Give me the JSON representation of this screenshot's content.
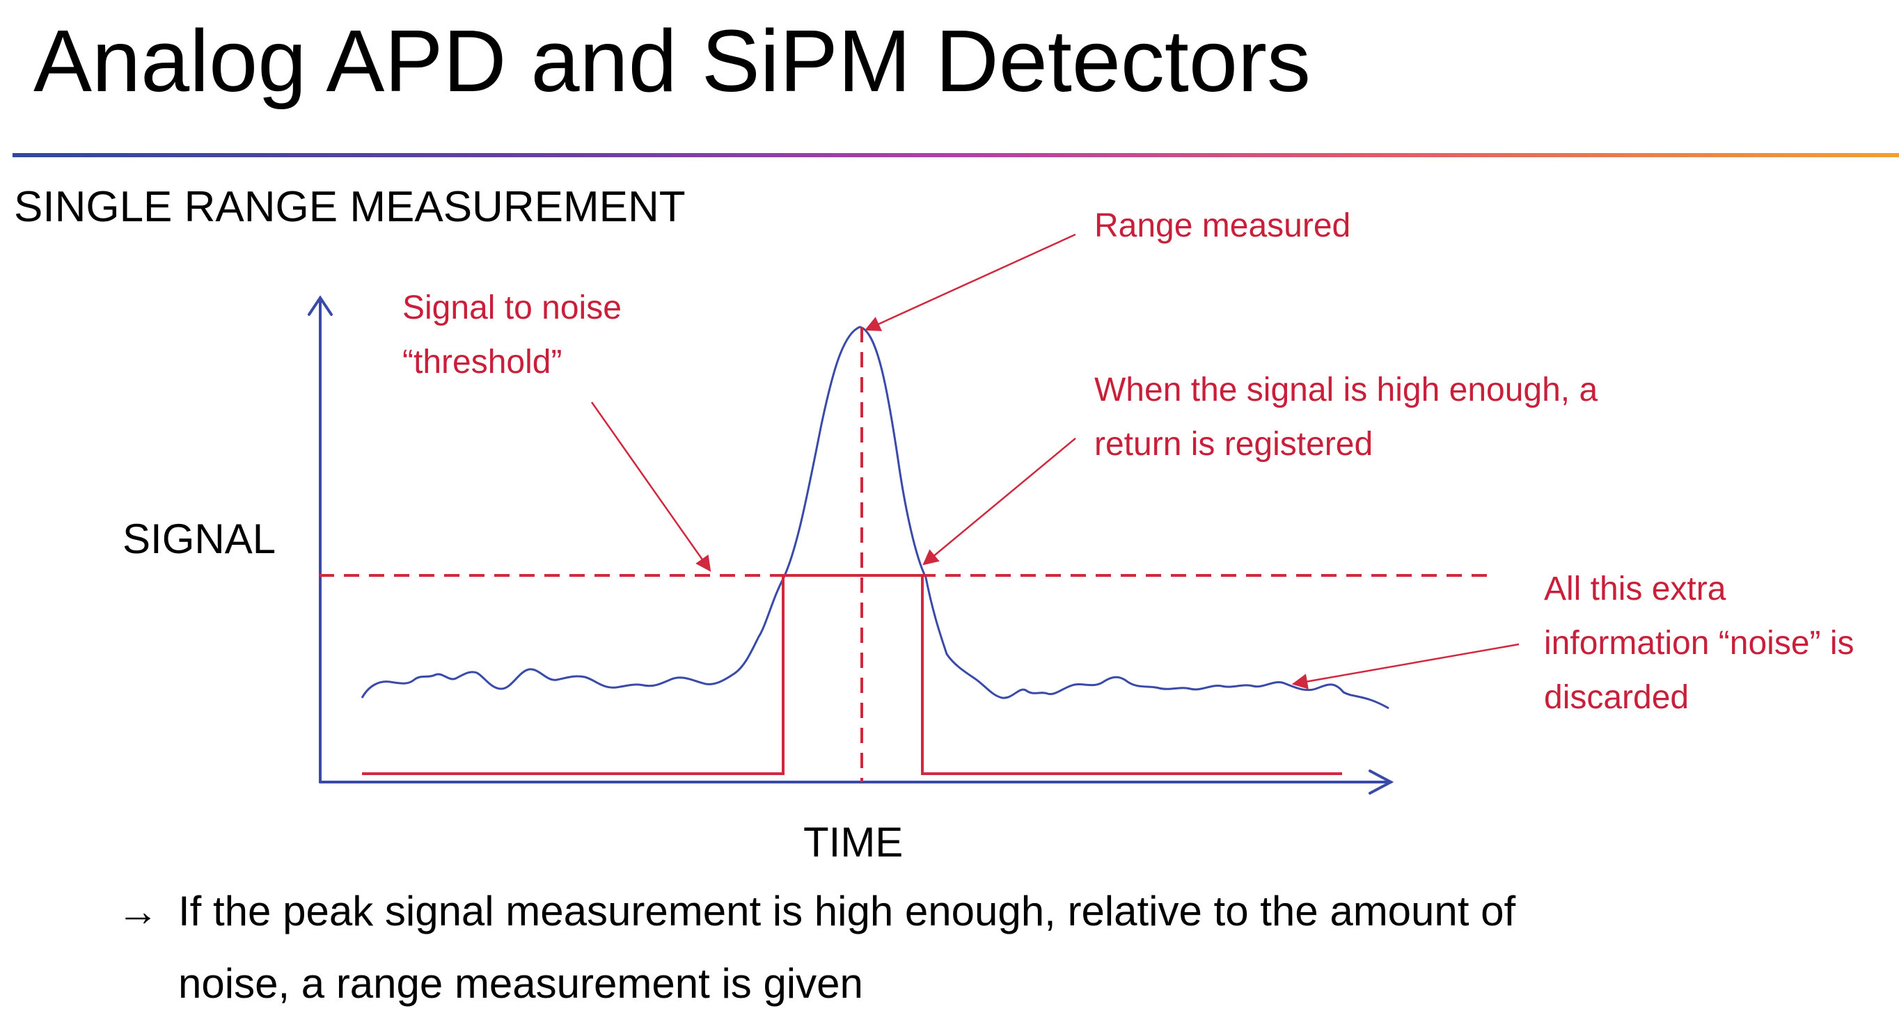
{
  "slide": {
    "title": "Analog APD and SiPM Detectors",
    "subtitle": "SINGLE RANGE MEASUREMENT"
  },
  "diagram": {
    "y_axis_label": "SIGNAL",
    "x_axis_label": "TIME",
    "annotations": {
      "threshold_line1": "Signal to noise",
      "threshold_line2": "“threshold”",
      "range": "Range measured",
      "return_line1": "When the signal is high enough, a",
      "return_line2": "return is registered",
      "noise_line1": "All this extra",
      "noise_line2": "information “noise” is",
      "noise_line3": "discarded"
    },
    "colors": {
      "axis": "#3a4aa8",
      "signal_curve": "#3a4aa8",
      "threshold_and_gate": "#d0283e",
      "annotation_text": "#c8203a"
    }
  },
  "bullet": {
    "arrow": "→",
    "line1": "If the peak signal measurement is high enough, relative to the amount of",
    "line2": "noise, a range measurement is given"
  }
}
